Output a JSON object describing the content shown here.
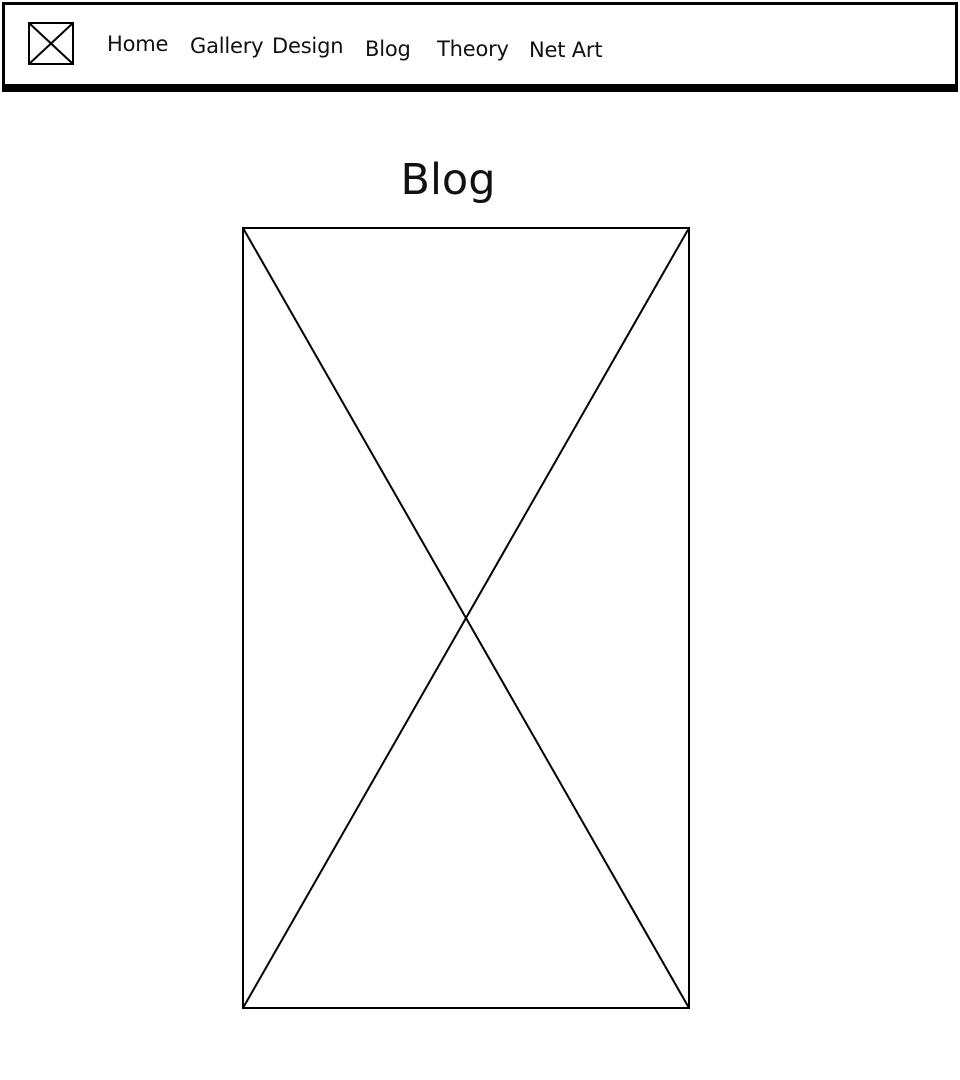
{
  "nav": {
    "items": [
      {
        "label": "Home"
      },
      {
        "label": "Gallery"
      },
      {
        "label": "Design"
      },
      {
        "label": "Blog"
      },
      {
        "label": "Theory"
      },
      {
        "label": "Net Art"
      }
    ]
  },
  "page": {
    "title": "Blog"
  },
  "icons": {
    "logo": "image-placeholder-icon",
    "hero": "image-placeholder-icon"
  },
  "colors": {
    "stroke": "#000000",
    "background": "#ffffff"
  }
}
